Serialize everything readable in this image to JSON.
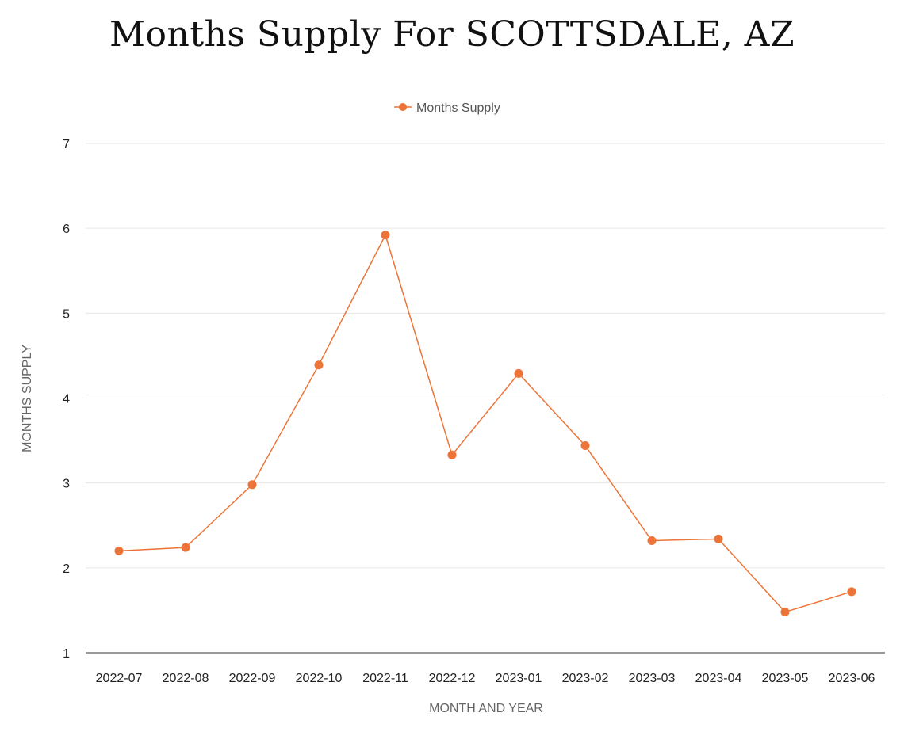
{
  "colors": {
    "series": "#ED7438",
    "grid": "#e6e6e6",
    "axis": "#333333"
  },
  "chart_data": {
    "type": "line",
    "title": "Months Supply For SCOTTSDALE, AZ",
    "xlabel": "MONTH AND YEAR",
    "ylabel": "MONTHS SUPPLY",
    "categories": [
      "2022-07",
      "2022-08",
      "2022-09",
      "2022-10",
      "2022-11",
      "2022-12",
      "2023-01",
      "2023-02",
      "2023-03",
      "2023-04",
      "2023-05",
      "2023-06"
    ],
    "series": [
      {
        "name": "Months Supply",
        "values": [
          2.2,
          2.24,
          2.98,
          4.39,
          5.92,
          3.33,
          4.29,
          3.44,
          2.32,
          2.34,
          1.48,
          1.72
        ]
      }
    ],
    "ylim": [
      1,
      7
    ],
    "yticks": [
      1,
      2,
      3,
      4,
      5,
      6,
      7
    ],
    "grid": true,
    "legend": "top-center"
  }
}
